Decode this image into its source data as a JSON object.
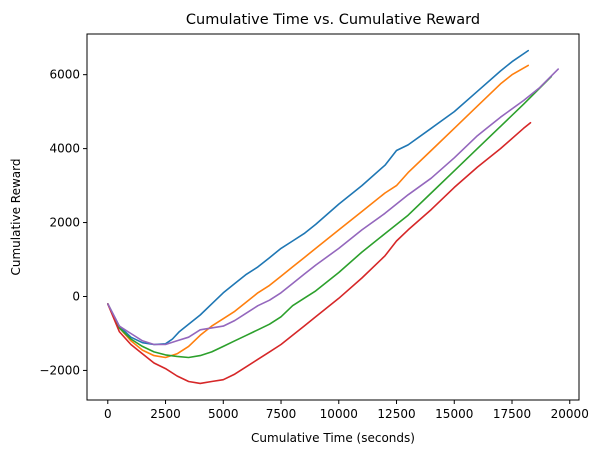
{
  "chart_data": {
    "type": "line",
    "title": "Cumulative Time vs. Cumulative Reward",
    "xlabel": "Cumulative Time (seconds)",
    "ylabel": "Cumulative Reward",
    "xlim": [
      -900,
      20400
    ],
    "ylim": [
      -2800,
      7100
    ],
    "xticks": [
      0,
      2500,
      5000,
      7500,
      10000,
      12500,
      15000,
      17500,
      20000
    ],
    "xtick_labels": [
      "0",
      "2500",
      "5000",
      "7500",
      "10000",
      "12500",
      "15000",
      "17500",
      "20000"
    ],
    "yticks": [
      -2000,
      0,
      2000,
      4000,
      6000
    ],
    "ytick_labels": [
      "−2000",
      "0",
      "2000",
      "4000",
      "6000"
    ],
    "grid": false,
    "series": [
      {
        "color": "#1f77b4",
        "x": [
          0,
          500,
          1000,
          1500,
          2000,
          2500,
          2800,
          3100,
          3500,
          4000,
          4500,
          5000,
          5500,
          6000,
          6500,
          7000,
          7500,
          8000,
          8500,
          9000,
          10000,
          11000,
          12000,
          12500,
          13000,
          14000,
          15000,
          16000,
          17000,
          17500,
          18200
        ],
        "y": [
          -200,
          -800,
          -1100,
          -1250,
          -1300,
          -1280,
          -1150,
          -950,
          -750,
          -500,
          -200,
          100,
          350,
          600,
          800,
          1050,
          1300,
          1500,
          1700,
          1950,
          2500,
          3000,
          3550,
          3950,
          4100,
          4550,
          5000,
          5550,
          6100,
          6350,
          6650
        ]
      },
      {
        "color": "#ff7f0e",
        "x": [
          0,
          500,
          1000,
          1500,
          2000,
          2500,
          3000,
          3500,
          4000,
          4500,
          5000,
          5500,
          6000,
          6500,
          7000,
          7500,
          8000,
          8500,
          9000,
          10000,
          11000,
          12000,
          12500,
          13000,
          14000,
          15000,
          16000,
          17000,
          17500,
          18200
        ],
        "y": [
          -200,
          -850,
          -1200,
          -1450,
          -1600,
          -1650,
          -1550,
          -1350,
          -1050,
          -800,
          -600,
          -400,
          -150,
          100,
          300,
          550,
          800,
          1050,
          1300,
          1800,
          2300,
          2800,
          3000,
          3350,
          3950,
          4550,
          5150,
          5750,
          6000,
          6250
        ]
      },
      {
        "color": "#2ca02c",
        "x": [
          0,
          500,
          1000,
          1500,
          2000,
          2500,
          3000,
          3500,
          4000,
          4500,
          5000,
          5500,
          6000,
          6500,
          7000,
          7500,
          8000,
          8500,
          9000,
          10000,
          11000,
          12000,
          13000,
          14000,
          15000,
          16000,
          17000,
          18000,
          19200
        ],
        "y": [
          -200,
          -850,
          -1150,
          -1350,
          -1500,
          -1580,
          -1620,
          -1650,
          -1600,
          -1500,
          -1350,
          -1200,
          -1050,
          -900,
          -750,
          -550,
          -250,
          -50,
          150,
          650,
          1200,
          1700,
          2200,
          2800,
          3400,
          4000,
          4600,
          5200,
          5950
        ]
      },
      {
        "color": "#d62728",
        "x": [
          0,
          500,
          1000,
          1500,
          2000,
          2500,
          3000,
          3500,
          4000,
          4500,
          5000,
          5500,
          6000,
          6500,
          7000,
          7500,
          8000,
          8500,
          9000,
          10000,
          11000,
          12000,
          12500,
          13000,
          14000,
          15000,
          16000,
          17000,
          18000,
          18300
        ],
        "y": [
          -200,
          -950,
          -1300,
          -1550,
          -1800,
          -1950,
          -2150,
          -2300,
          -2350,
          -2300,
          -2250,
          -2100,
          -1900,
          -1700,
          -1500,
          -1300,
          -1050,
          -800,
          -550,
          -50,
          500,
          1100,
          1500,
          1800,
          2350,
          2950,
          3500,
          4000,
          4550,
          4700
        ]
      },
      {
        "color": "#9467bd",
        "x": [
          0,
          500,
          1000,
          1500,
          2000,
          2500,
          3000,
          3500,
          4000,
          4500,
          5000,
          5500,
          6000,
          6500,
          7000,
          7500,
          8000,
          8500,
          9000,
          10000,
          11000,
          12000,
          13000,
          14000,
          15000,
          16000,
          17000,
          18000,
          18700,
          19500
        ],
        "y": [
          -200,
          -800,
          -1000,
          -1200,
          -1300,
          -1300,
          -1200,
          -1100,
          -900,
          -850,
          -800,
          -650,
          -450,
          -250,
          -100,
          100,
          350,
          600,
          850,
          1300,
          1800,
          2250,
          2750,
          3200,
          3750,
          4350,
          4850,
          5300,
          5650,
          6150
        ]
      }
    ]
  }
}
